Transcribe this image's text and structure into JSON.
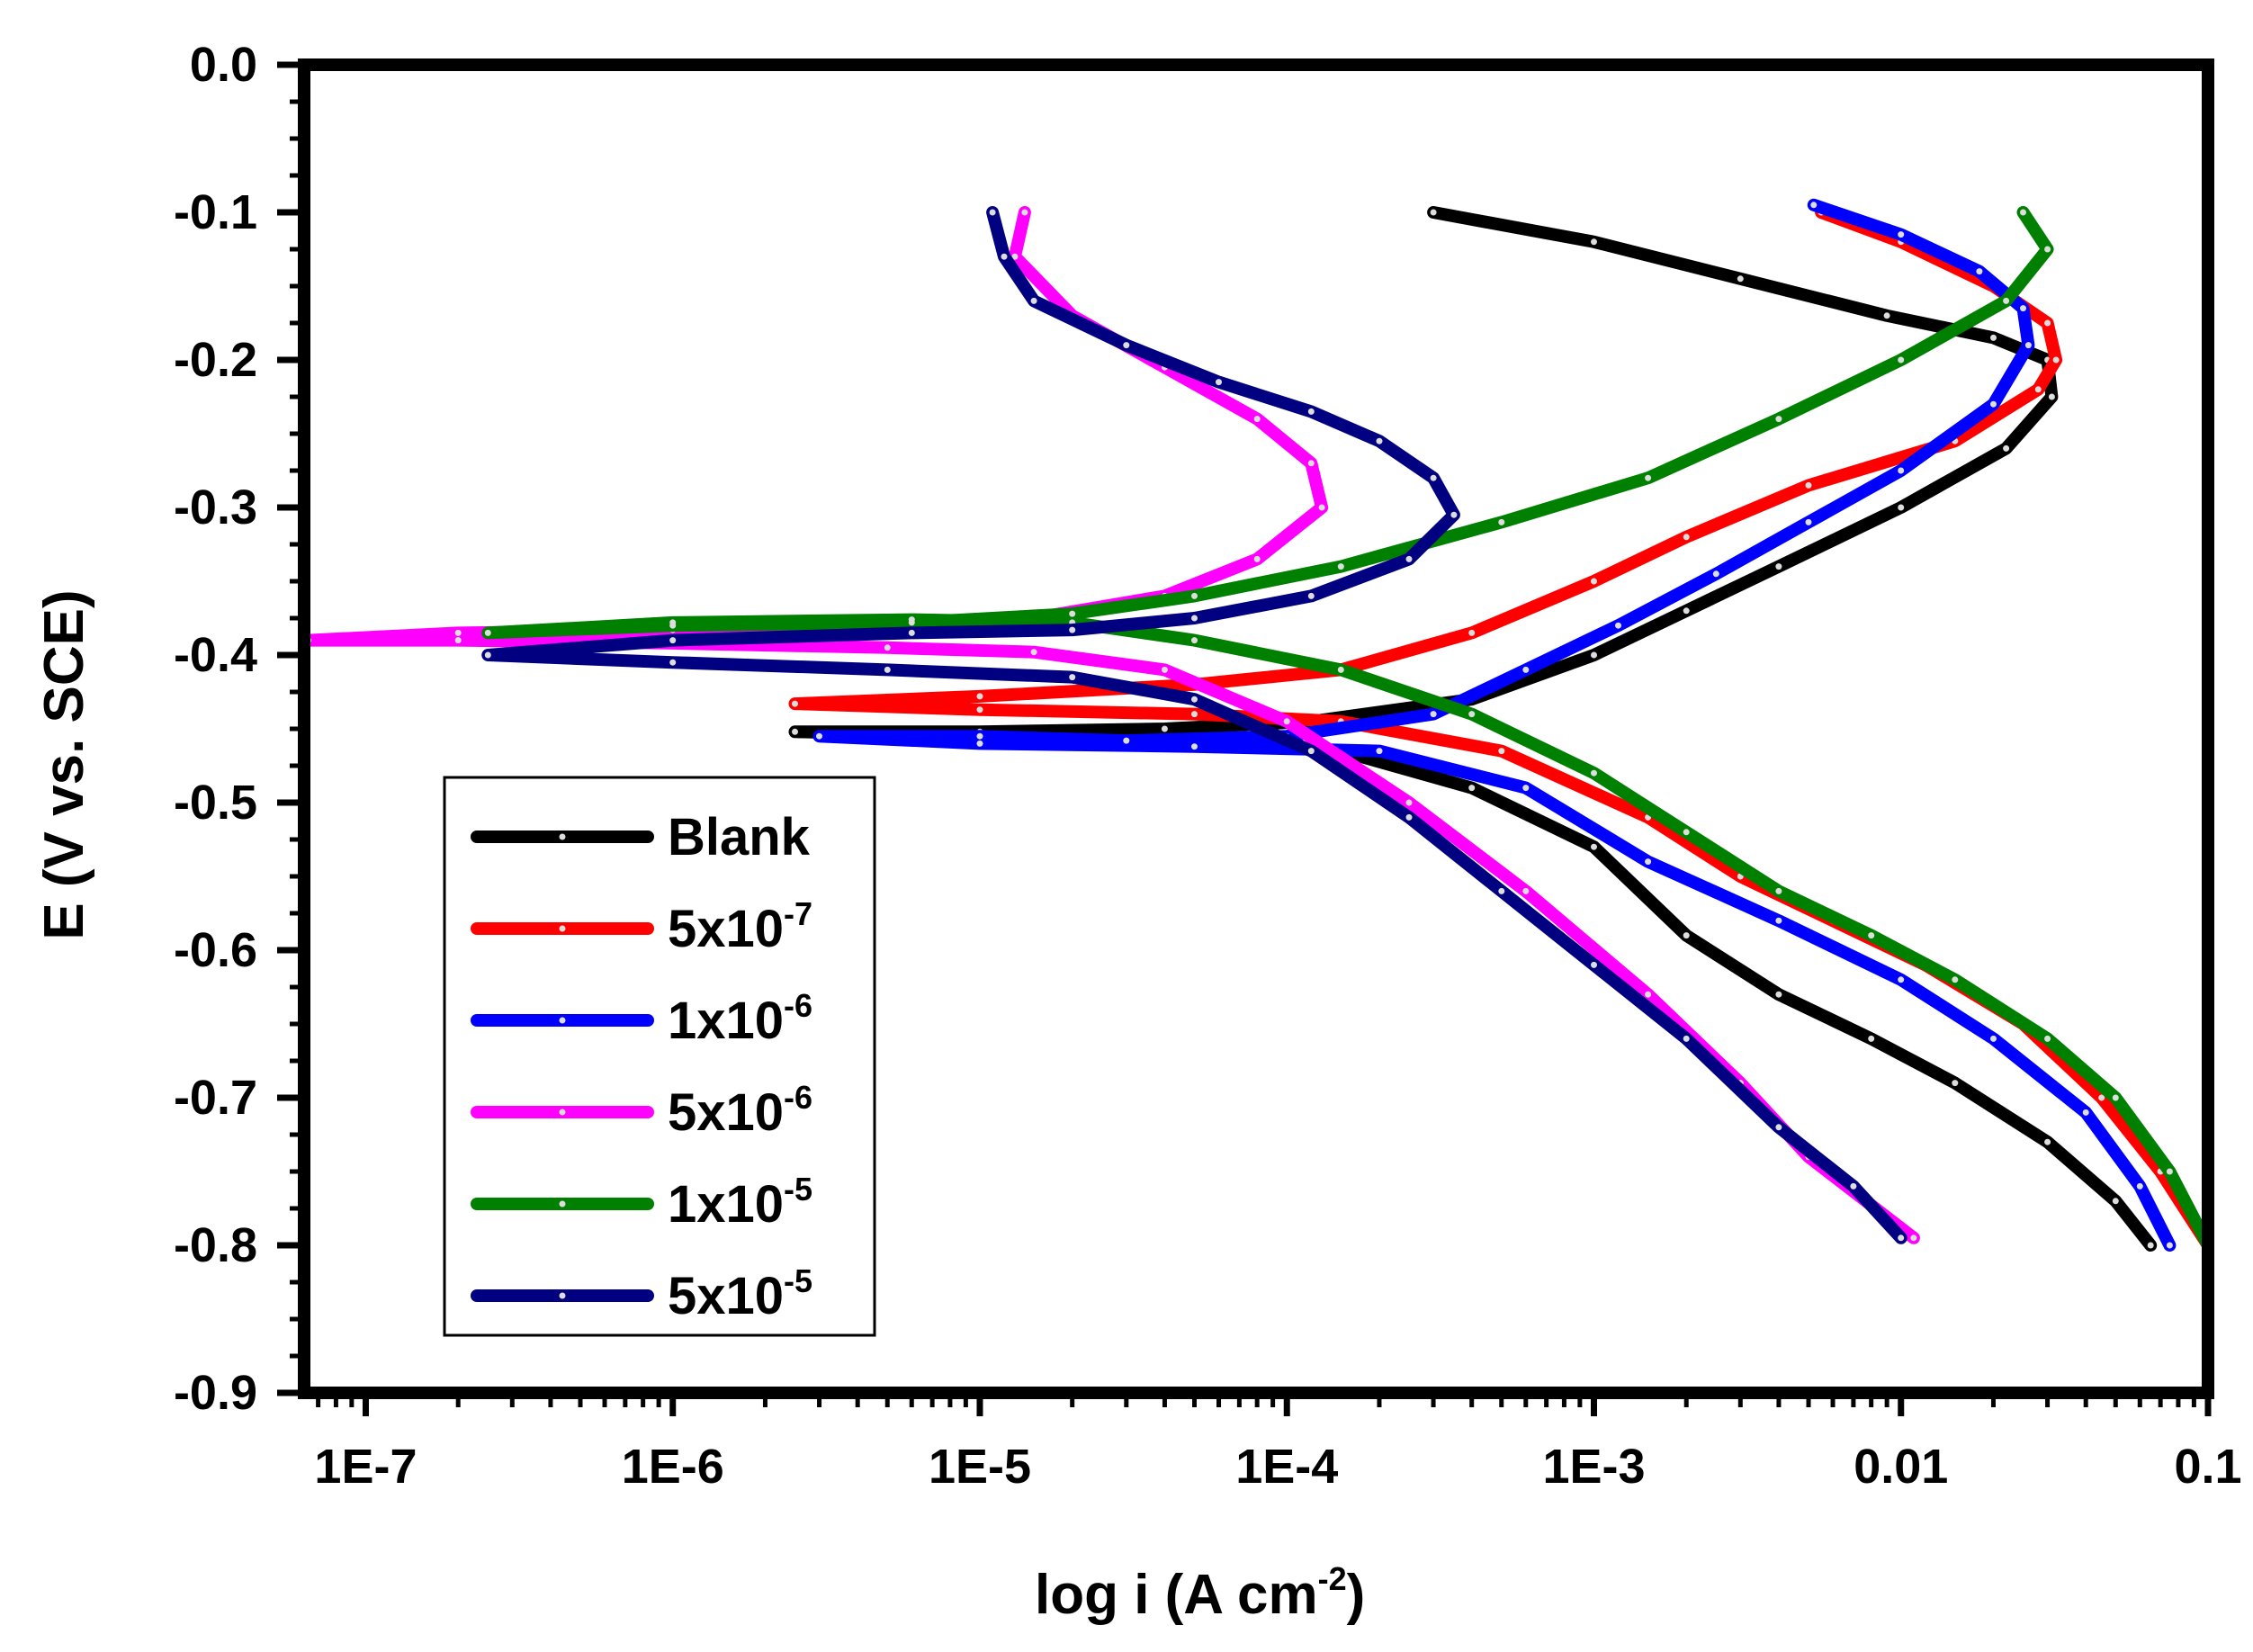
{
  "chart_data": {
    "type": "line",
    "xlabel": "log i (A cm",
    "xlabel_sup": "-2",
    "xlabel_tail": ")",
    "ylabel": "E  (V vs. SCE)",
    "x_scale": "log",
    "xlim": [
      6.3e-08,
      0.1
    ],
    "ylim": [
      -0.9,
      0.0
    ],
    "x_ticks": [
      {
        "value": 1e-07,
        "label": "1E-7"
      },
      {
        "value": 1e-06,
        "label": "1E-6"
      },
      {
        "value": 1e-05,
        "label": "1E-5"
      },
      {
        "value": 0.0001,
        "label": "1E-4"
      },
      {
        "value": 0.001,
        "label": "1E-3"
      },
      {
        "value": 0.01,
        "label": "0.01"
      },
      {
        "value": 0.1,
        "label": "0.1"
      }
    ],
    "y_ticks": [
      {
        "value": 0.0,
        "label": "0.0"
      },
      {
        "value": -0.1,
        "label": "-0.1"
      },
      {
        "value": -0.2,
        "label": "-0.2"
      },
      {
        "value": -0.3,
        "label": "-0.3"
      },
      {
        "value": -0.4,
        "label": "-0.4"
      },
      {
        "value": -0.5,
        "label": "-0.5"
      },
      {
        "value": -0.6,
        "label": "-0.6"
      },
      {
        "value": -0.7,
        "label": "-0.7"
      },
      {
        "value": -0.8,
        "label": "-0.8"
      },
      {
        "value": -0.9,
        "label": "-0.9"
      }
    ],
    "grid": false,
    "legend_position": "bottom-left",
    "series": [
      {
        "name": "Blank",
        "base": "",
        "exp": "",
        "color": "#000000",
        "points": [
          [
            0.0003,
            -0.1
          ],
          [
            0.001,
            -0.12
          ],
          [
            0.003,
            -0.145
          ],
          [
            0.009,
            -0.17
          ],
          [
            0.02,
            -0.185
          ],
          [
            0.03,
            -0.2
          ],
          [
            0.031,
            -0.225
          ],
          [
            0.022,
            -0.26
          ],
          [
            0.01,
            -0.3
          ],
          [
            0.004,
            -0.34
          ],
          [
            0.002,
            -0.37
          ],
          [
            0.001,
            -0.4
          ],
          [
            0.0004,
            -0.43
          ],
          [
            0.00012,
            -0.445
          ],
          [
            4e-05,
            -0.45
          ],
          [
            1e-05,
            -0.452
          ],
          [
            2.5e-06,
            -0.452
          ],
          [
            1e-05,
            -0.455
          ],
          [
            5e-05,
            -0.458
          ],
          [
            0.00015,
            -0.465
          ],
          [
            0.0004,
            -0.49
          ],
          [
            0.001,
            -0.53
          ],
          [
            0.002,
            -0.59
          ],
          [
            0.004,
            -0.63
          ],
          [
            0.008,
            -0.66
          ],
          [
            0.015,
            -0.69
          ],
          [
            0.03,
            -0.73
          ],
          [
            0.05,
            -0.77
          ],
          [
            0.065,
            -0.8
          ]
        ]
      },
      {
        "name": "",
        "base": "5x10",
        "exp": "-7",
        "color": "#ff0000",
        "points": [
          [
            0.0055,
            -0.1
          ],
          [
            0.01,
            -0.12
          ],
          [
            0.02,
            -0.15
          ],
          [
            0.03,
            -0.175
          ],
          [
            0.032,
            -0.2
          ],
          [
            0.028,
            -0.22
          ],
          [
            0.015,
            -0.255
          ],
          [
            0.005,
            -0.285
          ],
          [
            0.002,
            -0.32
          ],
          [
            0.001,
            -0.35
          ],
          [
            0.0004,
            -0.385
          ],
          [
            0.00015,
            -0.41
          ],
          [
            5e-05,
            -0.42
          ],
          [
            1e-05,
            -0.428
          ],
          [
            2.5e-06,
            -0.433
          ],
          [
            1e-05,
            -0.437
          ],
          [
            5e-05,
            -0.44
          ],
          [
            0.00015,
            -0.445
          ],
          [
            0.0005,
            -0.465
          ],
          [
            0.0015,
            -0.51
          ],
          [
            0.003,
            -0.55
          ],
          [
            0.006,
            -0.58
          ],
          [
            0.012,
            -0.61
          ],
          [
            0.025,
            -0.65
          ],
          [
            0.045,
            -0.7
          ],
          [
            0.07,
            -0.75
          ],
          [
            0.1,
            -0.8
          ]
        ]
      },
      {
        "name": "",
        "base": "1x10",
        "exp": "-6",
        "color": "#0000ff",
        "points": [
          [
            0.0052,
            -0.095
          ],
          [
            0.01,
            -0.115
          ],
          [
            0.018,
            -0.14
          ],
          [
            0.025,
            -0.165
          ],
          [
            0.026,
            -0.19
          ],
          [
            0.02,
            -0.23
          ],
          [
            0.01,
            -0.275
          ],
          [
            0.005,
            -0.31
          ],
          [
            0.0025,
            -0.345
          ],
          [
            0.0012,
            -0.38
          ],
          [
            0.0006,
            -0.41
          ],
          [
            0.0003,
            -0.44
          ],
          [
            0.0001,
            -0.455
          ],
          [
            3e-05,
            -0.458
          ],
          [
            1e-05,
            -0.455
          ],
          [
            3e-06,
            -0.455
          ],
          [
            1e-05,
            -0.46
          ],
          [
            5e-05,
            -0.462
          ],
          [
            0.0002,
            -0.465
          ],
          [
            0.0006,
            -0.49
          ],
          [
            0.0015,
            -0.54
          ],
          [
            0.004,
            -0.58
          ],
          [
            0.01,
            -0.62
          ],
          [
            0.02,
            -0.66
          ],
          [
            0.04,
            -0.71
          ],
          [
            0.06,
            -0.76
          ],
          [
            0.075,
            -0.8
          ]
        ]
      },
      {
        "name": "",
        "base": "5x10",
        "exp": "-6",
        "color": "#ff00ff",
        "points": [
          [
            1.4e-05,
            -0.1
          ],
          [
            1.3e-05,
            -0.13
          ],
          [
            2e-05,
            -0.17
          ],
          [
            4e-05,
            -0.205
          ],
          [
            8e-05,
            -0.24
          ],
          [
            0.00012,
            -0.27
          ],
          [
            0.00013,
            -0.3
          ],
          [
            8e-05,
            -0.335
          ],
          [
            4e-05,
            -0.36
          ],
          [
            1.5e-05,
            -0.375
          ],
          [
            5e-06,
            -0.38
          ],
          [
            1e-06,
            -0.383
          ],
          [
            2e-07,
            -0.385
          ],
          [
            6.5e-08,
            -0.39
          ],
          [
            2e-07,
            -0.39
          ],
          [
            1e-06,
            -0.392
          ],
          [
            5e-06,
            -0.395
          ],
          [
            1.5e-05,
            -0.398
          ],
          [
            4e-05,
            -0.41
          ],
          [
            0.0001,
            -0.445
          ],
          [
            0.00025,
            -0.5
          ],
          [
            0.0006,
            -0.56
          ],
          [
            0.0015,
            -0.63
          ],
          [
            0.003,
            -0.69
          ],
          [
            0.005,
            -0.74
          ],
          [
            0.011,
            -0.795
          ]
        ]
      },
      {
        "name": "",
        "base": "1x10",
        "exp": "-5",
        "color": "#008000",
        "points": [
          [
            0.025,
            -0.1
          ],
          [
            0.03,
            -0.125
          ],
          [
            0.022,
            -0.16
          ],
          [
            0.01,
            -0.2
          ],
          [
            0.004,
            -0.24
          ],
          [
            0.0015,
            -0.28
          ],
          [
            0.0005,
            -0.31
          ],
          [
            0.00015,
            -0.34
          ],
          [
            5e-05,
            -0.36
          ],
          [
            2e-05,
            -0.372
          ],
          [
            6e-06,
            -0.378
          ],
          [
            1e-06,
            -0.38
          ],
          [
            2.5e-07,
            -0.385
          ],
          [
            1e-06,
            -0.378
          ],
          [
            6e-06,
            -0.376
          ],
          [
            2e-05,
            -0.378
          ],
          [
            5e-05,
            -0.39
          ],
          [
            0.00015,
            -0.41
          ],
          [
            0.0004,
            -0.44
          ],
          [
            0.001,
            -0.48
          ],
          [
            0.002,
            -0.52
          ],
          [
            0.004,
            -0.56
          ],
          [
            0.008,
            -0.59
          ],
          [
            0.015,
            -0.62
          ],
          [
            0.03,
            -0.66
          ],
          [
            0.05,
            -0.7
          ],
          [
            0.075,
            -0.75
          ],
          [
            0.1,
            -0.8
          ]
        ]
      },
      {
        "name": "",
        "base": "5x10",
        "exp": "-5",
        "color": "#000080",
        "points": [
          [
            1.1e-05,
            -0.1
          ],
          [
            1.2e-05,
            -0.13
          ],
          [
            1.5e-05,
            -0.16
          ],
          [
            3e-05,
            -0.19
          ],
          [
            6e-05,
            -0.215
          ],
          [
            0.00012,
            -0.235
          ],
          [
            0.0002,
            -0.255
          ],
          [
            0.0003,
            -0.28
          ],
          [
            0.00035,
            -0.305
          ],
          [
            0.00025,
            -0.335
          ],
          [
            0.00012,
            -0.36
          ],
          [
            5e-05,
            -0.375
          ],
          [
            2e-05,
            -0.383
          ],
          [
            6e-06,
            -0.385
          ],
          [
            1e-06,
            -0.39
          ],
          [
            2.5e-07,
            -0.4
          ],
          [
            1e-06,
            -0.405
          ],
          [
            5e-06,
            -0.41
          ],
          [
            2e-05,
            -0.415
          ],
          [
            5e-05,
            -0.43
          ],
          [
            0.00012,
            -0.465
          ],
          [
            0.00025,
            -0.51
          ],
          [
            0.0005,
            -0.56
          ],
          [
            0.001,
            -0.61
          ],
          [
            0.002,
            -0.66
          ],
          [
            0.004,
            -0.72
          ],
          [
            0.007,
            -0.76
          ],
          [
            0.01,
            -0.795
          ]
        ]
      }
    ]
  }
}
